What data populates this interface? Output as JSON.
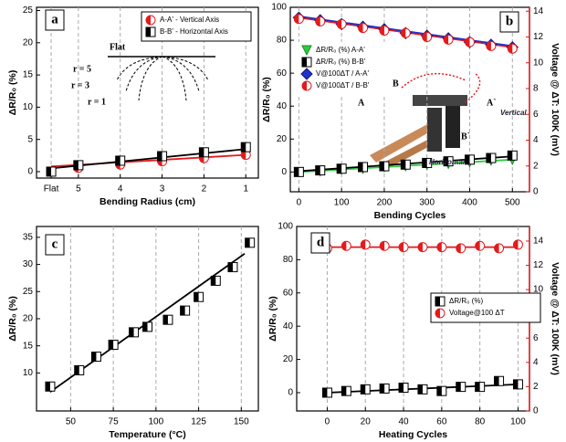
{
  "chart_data": [
    {
      "type": "scatter",
      "panel_label": "a",
      "x_label": "Bending Radius (cm)",
      "y_label": "ΔR/R₀ (%)",
      "xlim": [
        6,
        0.7
      ],
      "ylim": [
        -1,
        25.5
      ],
      "xticks": [
        {
          "value": 5.65,
          "label": "Flat"
        },
        5,
        4,
        3,
        2,
        1
      ],
      "yticks": [
        0,
        5,
        10,
        15,
        20,
        25
      ],
      "grid": "x",
      "legend": "upper right",
      "series": [
        {
          "name": "A-A' - Vertical Axis",
          "color": "#e41a1c",
          "marker": "circle-half",
          "x": [
            5.65,
            5,
            4,
            3,
            2,
            1
          ],
          "values": [
            0,
            0.6,
            1.1,
            1.6,
            2.1,
            2.6
          ]
        },
        {
          "name": "B-B' - Horizontal Axis",
          "color": "#000000",
          "marker": "square-half",
          "x": [
            5.65,
            5,
            4,
            3,
            2,
            1
          ],
          "values": [
            0,
            1,
            1.7,
            2.4,
            3,
            3.8
          ]
        }
      ],
      "fit_lines": [
        {
          "color": "#e41a1c",
          "x": [
            5.65,
            1
          ],
          "values": [
            0.8,
            2.6
          ]
        },
        {
          "color": "#000000",
          "x": [
            5.65,
            1
          ],
          "values": [
            0.5,
            3.5
          ]
        }
      ],
      "annotations": [
        "Flat",
        "r = 5",
        "r = 3",
        "r = 1"
      ]
    },
    {
      "type": "scatter",
      "panel_label": "b",
      "x_label": "Bending Cycles",
      "y_label": "ΔR/R₀ (%)",
      "y2_label": "Voltage @ ΔT: 100K (mV)",
      "y2_color": "#e41a1c",
      "xlim": [
        -20,
        540
      ],
      "ylim": [
        -12,
        100
      ],
      "y2lim": [
        0,
        14.3
      ],
      "xticks": [
        0,
        100,
        200,
        300,
        400,
        500
      ],
      "yticks": [
        0,
        20,
        40,
        60,
        80,
        100
      ],
      "y2ticks": [
        0,
        2,
        4,
        6,
        8,
        10,
        12,
        14
      ],
      "grid": "x",
      "legend": "center left",
      "series": [
        {
          "name": "ΔR/R₀ (%) A-A'",
          "color": "#2ecc40",
          "marker": "triangle-down",
          "x": [
            0,
            50,
            100,
            150,
            200,
            250,
            300,
            350,
            400,
            450,
            500
          ],
          "values": [
            0,
            0.5,
            1.5,
            2,
            3,
            3.5,
            4.5,
            5,
            6,
            7,
            7.5
          ]
        },
        {
          "name": "ΔR/R₀ (%) B-B'",
          "color": "#000000",
          "marker": "square-half",
          "x": [
            0,
            50,
            100,
            150,
            200,
            250,
            300,
            350,
            400,
            450,
            500
          ],
          "values": [
            0,
            1,
            2,
            3,
            3.5,
            4.5,
            5.5,
            6.5,
            7.5,
            8.5,
            10
          ]
        },
        {
          "name": "V@100ΔT / A-A'",
          "color": "#2233cc",
          "marker": "diamond",
          "axis": "y2",
          "x": [
            0,
            50,
            100,
            150,
            200,
            250,
            300,
            350,
            400,
            450,
            500
          ],
          "values": [
            13.5,
            13.3,
            13,
            12.8,
            12.6,
            12.3,
            12.1,
            11.9,
            11.6,
            11.4,
            11.2
          ]
        },
        {
          "name": "V@100ΔT / B-B'",
          "color": "#e41a1c",
          "marker": "circle-half",
          "axis": "y2",
          "x": [
            0,
            50,
            100,
            150,
            200,
            250,
            300,
            350,
            400,
            450,
            500
          ],
          "values": [
            13.4,
            13.2,
            13,
            12.7,
            12.5,
            12.3,
            12,
            11.8,
            11.6,
            11.3,
            11.1
          ]
        }
      ],
      "fit_lines": [
        {
          "color": "#2ecc40",
          "x": [
            0,
            500
          ],
          "values": [
            0,
            7.5
          ]
        },
        {
          "color": "#000000",
          "x": [
            0,
            500
          ],
          "values": [
            0.5,
            9.5
          ]
        },
        {
          "color": "#e41a1c",
          "axis": "y2",
          "x": [
            0,
            500
          ],
          "values": [
            13.5,
            11.2
          ]
        },
        {
          "color": "#2233cc",
          "axis": "y2",
          "x": [
            0,
            500
          ],
          "values": [
            13.6,
            11.3
          ]
        }
      ],
      "annotations": [
        "A",
        "B",
        "A`",
        "B`",
        "Vertical",
        "Horizontal"
      ]
    },
    {
      "type": "scatter",
      "panel_label": "c",
      "x_label": "Temperature (°C)",
      "y_label": "ΔR/R₀ (%)",
      "xlim": [
        30,
        160
      ],
      "ylim": [
        3,
        37
      ],
      "xticks": [
        50,
        75,
        100,
        125,
        150
      ],
      "yticks": [
        10,
        15,
        20,
        25,
        30,
        35
      ],
      "grid": "x",
      "series": [
        {
          "color": "#000000",
          "marker": "square-half",
          "x": [
            38,
            55,
            65,
            75,
            87,
            95,
            107,
            117,
            125,
            135,
            145,
            155
          ],
          "values": [
            7.5,
            10.5,
            13,
            15.2,
            17.5,
            18.5,
            19.8,
            21.5,
            24,
            27,
            29.5,
            34
          ]
        }
      ],
      "fit_lines": [
        {
          "color": "#000000",
          "x": [
            38,
            152
          ],
          "values": [
            6.5,
            32
          ]
        }
      ]
    },
    {
      "type": "scatter",
      "panel_label": "d",
      "x_label": "Heating Cycles",
      "y_label": "ΔR/R₀ (%)",
      "y2_label": "Voltage @ ΔT: 100K (mV)",
      "y2_color": "#e41a1c",
      "xlim": [
        -16,
        106
      ],
      "ylim": [
        -11,
        100
      ],
      "y2lim": [
        0,
        15.2
      ],
      "xticks": [
        0,
        20,
        40,
        60,
        80,
        100
      ],
      "yticks": [
        0,
        20,
        40,
        60,
        80,
        100
      ],
      "y2ticks": [
        0,
        2,
        4,
        6,
        8,
        10,
        12,
        14
      ],
      "grid": "x",
      "legend": "center right",
      "series": [
        {
          "name": "ΔR/R₀ (%)",
          "color": "#000000",
          "marker": "square-half",
          "x": [
            0,
            10,
            20,
            30,
            40,
            50,
            60,
            70,
            80,
            90,
            100
          ],
          "values": [
            0,
            1,
            2,
            2.5,
            3,
            2,
            1,
            3.5,
            3.5,
            7,
            5
          ]
        },
        {
          "name": "Voltage@100 ΔT",
          "color": "#e41a1c",
          "marker": "circle-half",
          "axis": "y2",
          "x": [
            0,
            10,
            20,
            30,
            40,
            50,
            60,
            70,
            80,
            90,
            100
          ],
          "values": [
            13.4,
            13.6,
            13.7,
            13.6,
            13.5,
            13.5,
            13.5,
            13.4,
            13.6,
            13.4,
            13.7
          ]
        }
      ],
      "fit_lines": [
        {
          "color": "#000000",
          "x": [
            0,
            100
          ],
          "values": [
            0,
            5
          ]
        },
        {
          "color": "#e41a1c",
          "axis": "y2",
          "x": [
            0,
            100
          ],
          "values": [
            13.5,
            13.5
          ]
        }
      ]
    }
  ]
}
